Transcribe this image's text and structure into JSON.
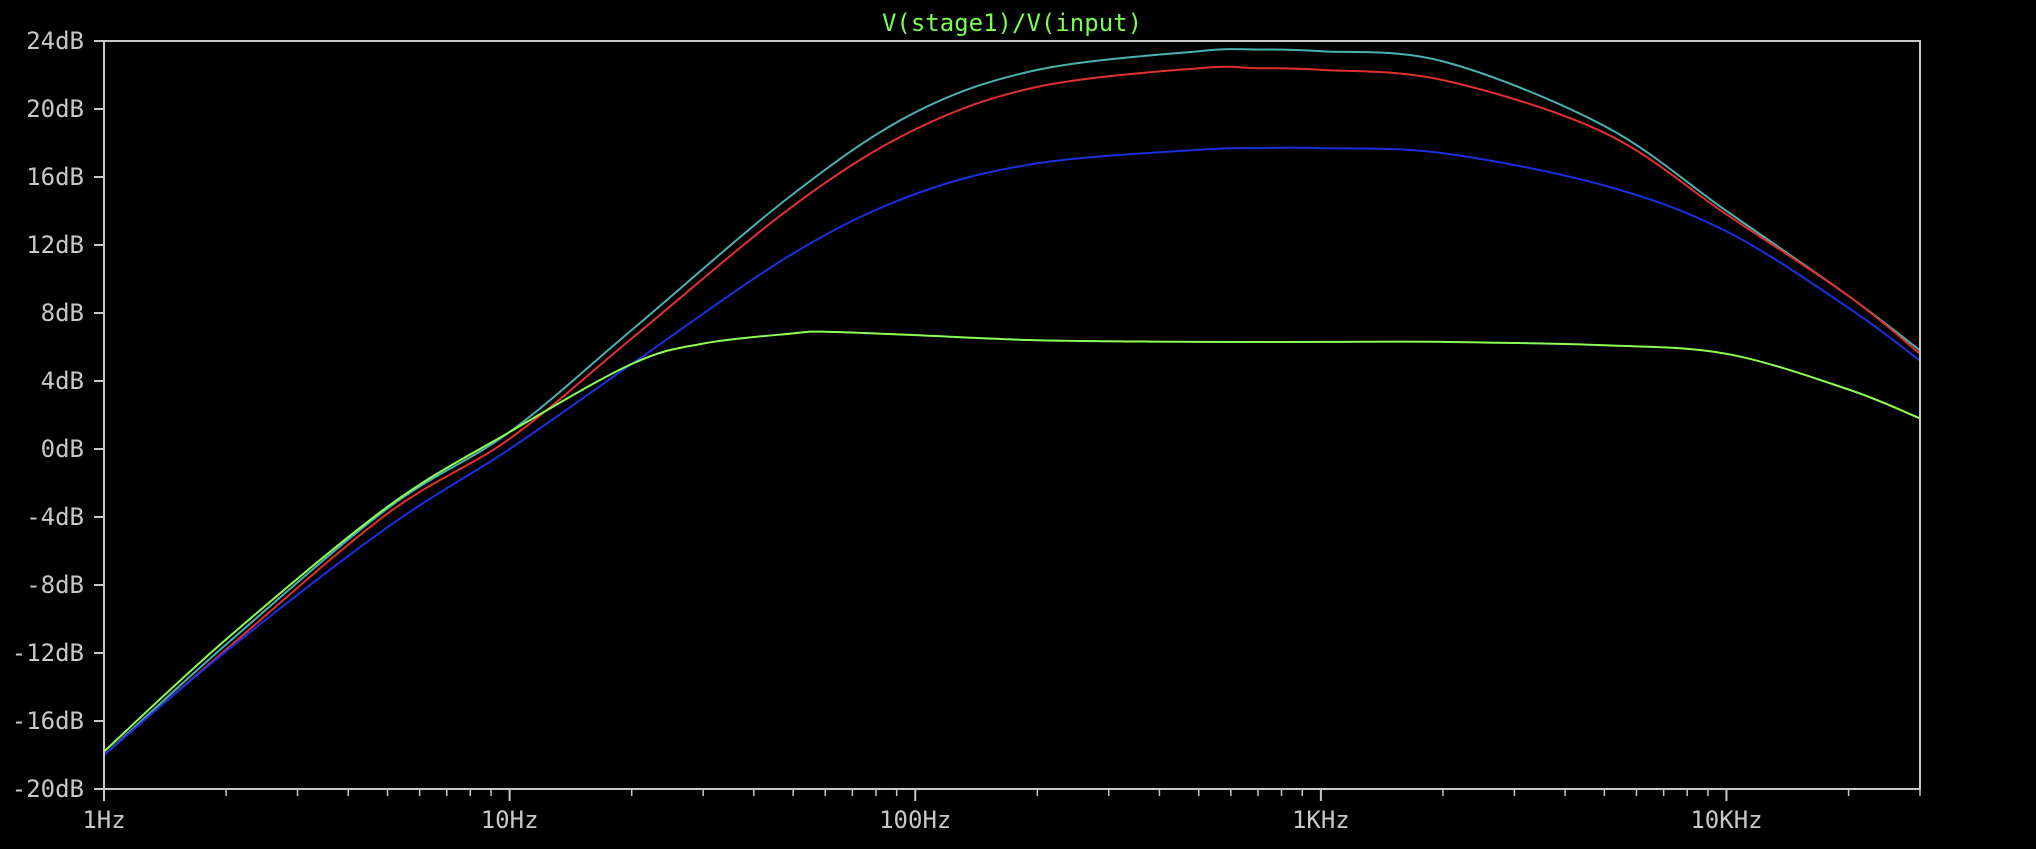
{
  "chart_data": {
    "type": "line",
    "title": "V(stage1)/V(input)",
    "x_scale": "log",
    "xlim": [
      1,
      30000
    ],
    "ylim": [
      -20,
      24
    ],
    "x_ticks": [
      {
        "value": 1,
        "label": "1Hz"
      },
      {
        "value": 10,
        "label": "10Hz"
      },
      {
        "value": 100,
        "label": "100Hz"
      },
      {
        "value": 1000,
        "label": "1KHz"
      },
      {
        "value": 10000,
        "label": "10KHz"
      }
    ],
    "y_ticks": [
      {
        "value": 24,
        "label": "24dB"
      },
      {
        "value": 20,
        "label": "20dB"
      },
      {
        "value": 16,
        "label": "16dB"
      },
      {
        "value": 12,
        "label": "12dB"
      },
      {
        "value": 8,
        "label": "8dB"
      },
      {
        "value": 4,
        "label": "4dB"
      },
      {
        "value": 0,
        "label": "0dB"
      },
      {
        "value": -4,
        "label": "-4dB"
      },
      {
        "value": -8,
        "label": "-8dB"
      },
      {
        "value": -12,
        "label": "-12dB"
      },
      {
        "value": -16,
        "label": "-16dB"
      },
      {
        "value": -20,
        "label": "-20dB"
      }
    ],
    "grid": false,
    "colors": {
      "background": "#000000",
      "axis": "#c8c8c8",
      "title": "#7cfc52"
    },
    "series": [
      {
        "color": "#4bb0b0",
        "x": [
          1,
          2,
          5,
          10,
          20,
          50,
          100,
          200,
          500,
          700,
          1000,
          2000,
          5000,
          10000,
          20000,
          30000
        ],
        "y": [
          -18,
          -11.5,
          -3.5,
          1,
          7,
          15,
          19.8,
          22.3,
          23.4,
          23.5,
          23.4,
          22.8,
          19,
          14,
          9,
          5.8
        ]
      },
      {
        "color": "#e03030",
        "x": [
          1,
          2,
          5,
          10,
          20,
          50,
          100,
          200,
          500,
          700,
          1000,
          2000,
          5000,
          10000,
          20000,
          30000
        ],
        "y": [
          -18,
          -11.8,
          -3.8,
          0.6,
          6.5,
          14.3,
          18.8,
          21.3,
          22.4,
          22.4,
          22.3,
          21.7,
          18.6,
          13.8,
          9,
          5.6
        ]
      },
      {
        "color": "#1a2fe0",
        "x": [
          1,
          2,
          5,
          10,
          20,
          50,
          100,
          200,
          500,
          700,
          1000,
          2000,
          5000,
          10000,
          20000,
          30000
        ],
        "y": [
          -18,
          -11.9,
          -4.6,
          0,
          5,
          11.5,
          15,
          16.8,
          17.6,
          17.7,
          17.7,
          17.4,
          15.5,
          12.8,
          8.3,
          5.2
        ]
      },
      {
        "color": "#8cff55",
        "x": [
          1,
          2,
          5,
          10,
          20,
          30,
          50,
          60,
          100,
          200,
          500,
          1000,
          2000,
          5000,
          10000,
          20000,
          30000
        ],
        "y": [
          -17.8,
          -11.2,
          -3.4,
          1,
          5,
          6.2,
          6.8,
          6.9,
          6.7,
          6.4,
          6.3,
          6.3,
          6.3,
          6.1,
          5.6,
          3.5,
          1.8
        ]
      }
    ]
  }
}
